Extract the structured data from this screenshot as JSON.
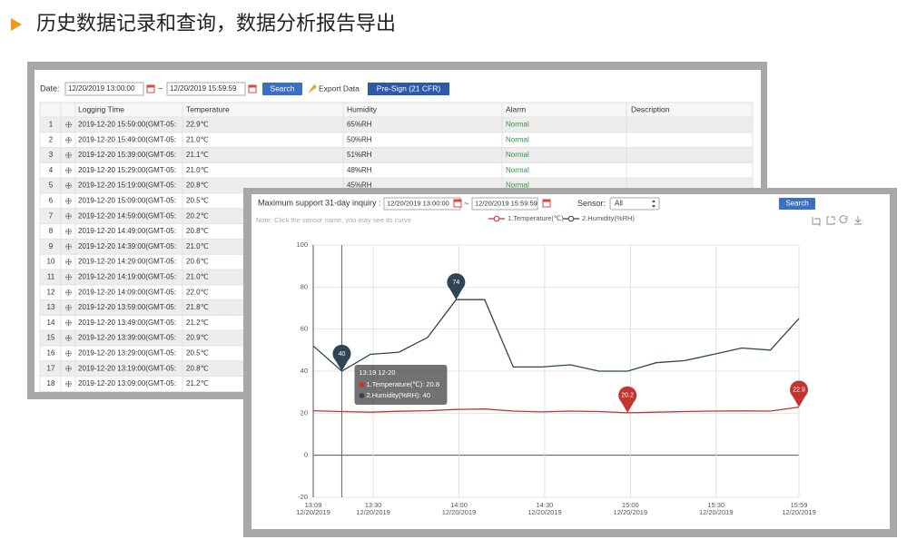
{
  "header": {
    "title": "历史数据记录和查询，数据分析报告导出"
  },
  "table_window": {
    "toolbar": {
      "date_label": "Date:",
      "start": "12/20/2019 13:00:00",
      "tilde": "~",
      "end": "12/20/2019 15:59:59",
      "search": "Search",
      "export": "Export Data",
      "presign": "Pre-Sign (21 CFR)"
    },
    "table": {
      "columns": [
        "Logging Time",
        "Temperature",
        "Humidity",
        "Alarm",
        "Description"
      ],
      "rows": [
        [
          1,
          "2019-12-20 15:59:00(GMT-05:",
          "22.9℃",
          "65%RH",
          "Normal"
        ],
        [
          2,
          "2019-12-20 15:49:00(GMT-05:",
          "21.0℃",
          "50%RH",
          "Normal"
        ],
        [
          3,
          "2019-12-20 15:39:00(GMT-05:",
          "21.1℃",
          "51%RH",
          "Normal"
        ],
        [
          4,
          "2019-12-20 15:29:00(GMT-05:",
          "21.0℃",
          "48%RH",
          "Normal"
        ],
        [
          5,
          "2019-12-20 15:19:00(GMT-05:",
          "20.8℃",
          "45%RH",
          "Normal"
        ],
        [
          6,
          "2019-12-20 15:09:00(GMT-05:",
          "20.5℃"
        ],
        [
          7,
          "2019-12-20 14:59:00(GMT-05:",
          "20.2℃"
        ],
        [
          8,
          "2019-12-20 14:49:00(GMT-05:",
          "20.8℃"
        ],
        [
          9,
          "2019-12-20 14:39:00(GMT-05:",
          "21.0℃"
        ],
        [
          10,
          "2019-12-20 14:29:00(GMT-05:",
          "20.6℃"
        ],
        [
          11,
          "2019-12-20 14:19:00(GMT-05:",
          "21.0℃"
        ],
        [
          12,
          "2019-12-20 14:09:00(GMT-05:",
          "22.0℃"
        ],
        [
          13,
          "2019-12-20 13:59:00(GMT-05:",
          "21.8℃"
        ],
        [
          14,
          "2019-12-20 13:49:00(GMT-05:",
          "21.2℃"
        ],
        [
          15,
          "2019-12-20 13:39:00(GMT-05:",
          "20.9℃"
        ],
        [
          16,
          "2019-12-20 13:29:00(GMT-05:",
          "20.5℃"
        ],
        [
          17,
          "2019-12-20 13:19:00(GMT-05:",
          "20.8℃"
        ],
        [
          18,
          "2019-12-20 13:09:00(GMT-05:",
          "21.2℃"
        ]
      ]
    }
  },
  "chart_window": {
    "toolbar": {
      "range_label": "Maximum support 31-day inquiry :",
      "start": "12/20/2019 13:00:00",
      "tilde": "~",
      "end": "12/20/2019 15:59:59",
      "sensor_label": "Sensor:",
      "sensor": "All",
      "search": "Search"
    },
    "note": "Note: Click the sensor name, you may see its curve",
    "chart_data": {
      "type": "line",
      "x": [
        "13:09",
        "13:19",
        "13:29",
        "13:39",
        "13:49",
        "13:59",
        "14:09",
        "14:19",
        "14:29",
        "14:39",
        "14:49",
        "14:59",
        "15:09",
        "15:19",
        "15:29",
        "15:39",
        "15:49",
        "15:59"
      ],
      "series": [
        {
          "name": "1.Temperature(℃)",
          "color": "#c23531",
          "values": [
            21.2,
            20.8,
            20.5,
            20.9,
            21.2,
            21.8,
            22.0,
            21.0,
            20.6,
            21.0,
            20.8,
            20.2,
            20.5,
            20.8,
            21.0,
            21.1,
            21.0,
            22.9
          ],
          "value_labels": [
            null,
            null,
            null,
            null,
            null,
            null,
            null,
            null,
            null,
            null,
            null,
            "20.2",
            null,
            null,
            null,
            null,
            null,
            "22.9"
          ]
        },
        {
          "name": "2.Humidity(%RH)",
          "color": "#2f4554",
          "values": [
            52,
            40,
            48,
            49,
            56,
            74,
            74,
            42,
            42,
            43,
            40,
            40,
            44,
            45,
            48,
            51,
            50,
            65
          ],
          "value_labels": [
            null,
            "40",
            null,
            null,
            null,
            "74",
            null,
            null,
            null,
            null,
            null,
            null,
            null,
            null,
            null,
            null,
            null,
            null
          ]
        }
      ],
      "xlim": [
        "13:09",
        "15:59"
      ],
      "xticks": [
        "13:09",
        "13:30",
        "14:00",
        "14:30",
        "15:00",
        "15:30",
        "15:59"
      ],
      "xtick_date": "12/20/2019",
      "ylim": [
        -20,
        100
      ],
      "yticks": [
        -20,
        0,
        20,
        40,
        60,
        80,
        100
      ],
      "grid": true,
      "tooltip": {
        "title": "13:19 12-20",
        "lines": [
          "1.Temperature(℃): 20.8",
          "2.Humidity(%RH): 40"
        ]
      }
    }
  }
}
